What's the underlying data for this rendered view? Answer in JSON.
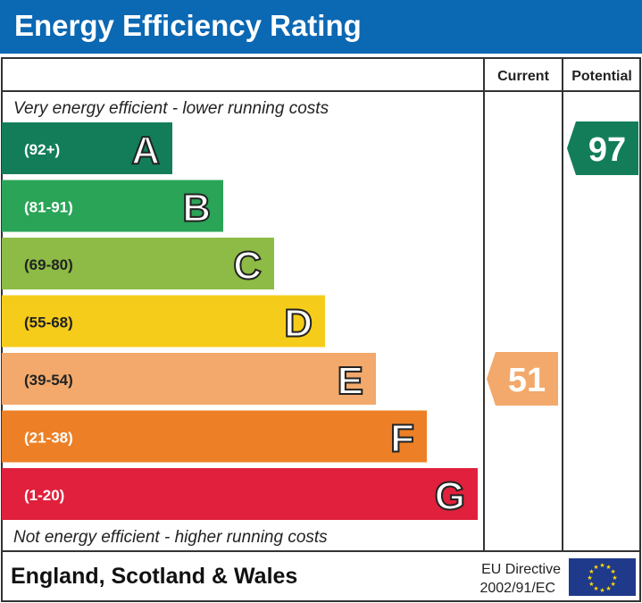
{
  "title": "Energy Efficiency Rating",
  "chart_data": {
    "type": "bar",
    "columns": {
      "current": "Current",
      "potential": "Potential"
    },
    "top_note": "Very energy efficient - lower running costs",
    "bottom_note": "Not energy efficient - higher running costs",
    "bands": [
      {
        "letter": "A",
        "range": "(92+)",
        "color": "#137d5a"
      },
      {
        "letter": "B",
        "range": "(81-91)",
        "color": "#2aa457"
      },
      {
        "letter": "C",
        "range": "(69-80)",
        "color": "#8dbb45"
      },
      {
        "letter": "D",
        "range": "(55-68)",
        "color": "#f5cc1a"
      },
      {
        "letter": "E",
        "range": "(39-54)",
        "color": "#f2a96b"
      },
      {
        "letter": "F",
        "range": "(21-38)",
        "color": "#ed8026"
      },
      {
        "letter": "G",
        "range": "(1-20)",
        "color": "#e0203c"
      }
    ],
    "current": {
      "value": "51",
      "band": "E"
    },
    "potential": {
      "value": "97",
      "band": "A"
    }
  },
  "footer": {
    "region": "England, Scotland & Wales",
    "directive_line1": "EU Directive",
    "directive_line2": "2002/91/EC"
  }
}
